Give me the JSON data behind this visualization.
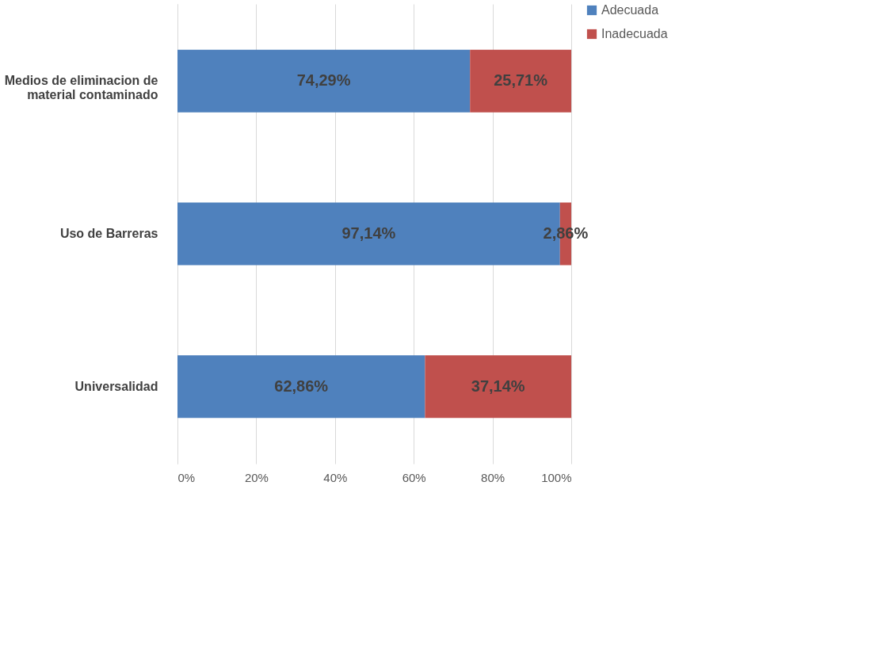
{
  "chart_data": {
    "type": "bar",
    "orientation": "horizontal",
    "stacked": true,
    "categories": [
      "Medios de eliminacion de material contaminado",
      "Uso de Barreras",
      "Universalidad"
    ],
    "series": [
      {
        "name": "Adecuada",
        "color": "#4f81bd",
        "values": [
          74.29,
          97.14,
          62.86
        ],
        "value_labels": [
          "74,29%",
          "97,14%",
          "62,86%"
        ]
      },
      {
        "name": "Inadecuada",
        "color": "#c0504d",
        "values": [
          25.71,
          2.86,
          37.14
        ],
        "value_labels": [
          "25,71%",
          "2,86%",
          "37,14%"
        ]
      }
    ],
    "xlim": [
      0,
      100
    ],
    "xticks": [
      {
        "value": 0,
        "label": "0%"
      },
      {
        "value": 20,
        "label": "20%"
      },
      {
        "value": 40,
        "label": "40%"
      },
      {
        "value": 60,
        "label": "60%"
      },
      {
        "value": 80,
        "label": "80%"
      },
      {
        "value": 100,
        "label": "100%"
      }
    ],
    "grid": "x",
    "legend": "right"
  }
}
